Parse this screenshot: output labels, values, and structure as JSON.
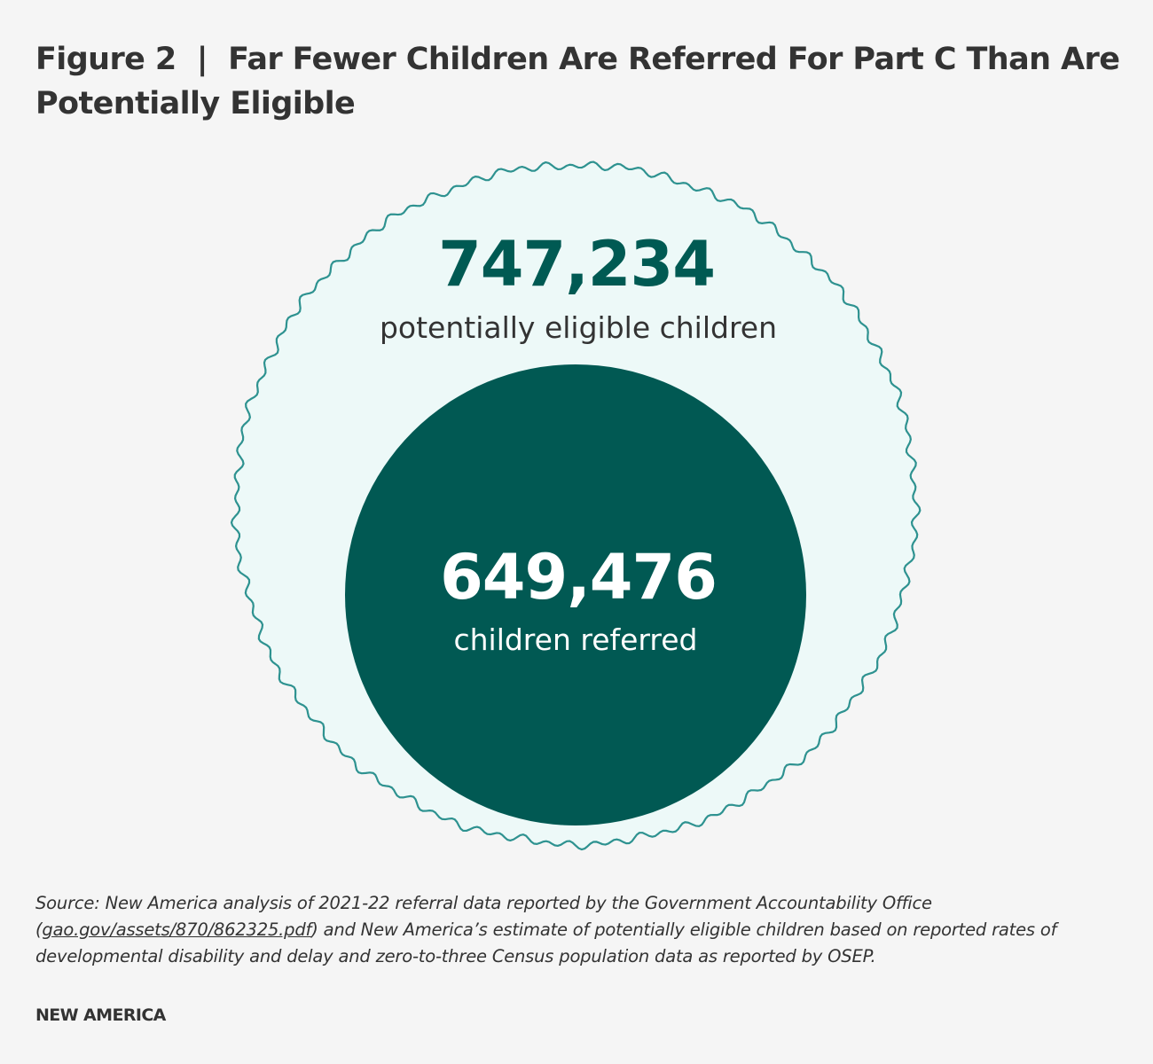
{
  "title": "Figure 2  |  Far Fewer Children Are Referred For Part C Than Are Potentially Eligible",
  "source": {
    "prefix": "Source: New America analysis of 2021-22 referral data reported by the Government Accountability Office (",
    "link": "gao.gov/assets/870/862325.pdf",
    "suffix": ") and New America’s estimate of potentially eligible children based on reported rates of developmental disability and delay and zero-to-three Census population data as reported by OSEP."
  },
  "brand": "NEW AMERICA",
  "colors": {
    "outer_fill": "#edf9f8",
    "outer_stroke": "#2e9290",
    "inner_fill": "#015953",
    "outer_value_text": "#005a53",
    "outer_label_text": "#333333",
    "inner_text": "#ffffff"
  },
  "chart_data": {
    "type": "nested-circle",
    "series": [
      {
        "value_label": "747,234",
        "value": 747234,
        "label": "potentially eligible children"
      },
      {
        "value_label": "649,476",
        "value": 649476,
        "label": "children referred"
      }
    ]
  }
}
